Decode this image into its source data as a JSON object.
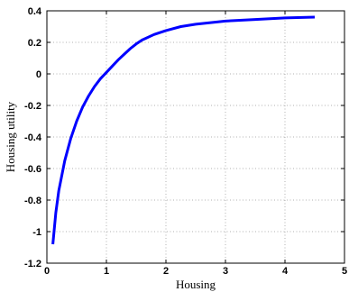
{
  "chart_data": {
    "type": "line",
    "title": "",
    "xlabel": "Housing",
    "ylabel": "Housing utility",
    "xlim": [
      0,
      5
    ],
    "ylim": [
      -1.2,
      0.4
    ],
    "xticks": [
      0,
      1,
      2,
      3,
      4,
      5
    ],
    "xtick_labels": [
      "0",
      "1",
      "2",
      "3",
      "4",
      "5"
    ],
    "yticks": [
      -1.2,
      -1,
      -0.8,
      -0.6,
      -0.4,
      -0.2,
      0,
      0.2,
      0.4
    ],
    "ytick_labels": [
      "-1.2",
      "-1",
      "-0.8",
      "-0.6",
      "-0.4",
      "-0.2",
      "0",
      "0.2",
      "0.4"
    ],
    "grid": true,
    "series": [
      {
        "color": "#0000ff",
        "x": [
          0.1,
          0.15,
          0.2,
          0.3,
          0.4,
          0.5,
          0.6,
          0.7,
          0.8,
          0.9,
          1.0,
          1.1,
          1.2,
          1.3,
          1.4,
          1.5,
          1.6,
          1.8,
          2.0,
          2.25,
          2.5,
          2.75,
          3.0,
          3.5,
          4.0,
          4.5
        ],
        "y": [
          -1.08,
          -0.88,
          -0.74,
          -0.55,
          -0.41,
          -0.3,
          -0.21,
          -0.14,
          -0.08,
          -0.03,
          0.01,
          0.05,
          0.09,
          0.125,
          0.16,
          0.19,
          0.215,
          0.25,
          0.275,
          0.3,
          0.315,
          0.325,
          0.335,
          0.345,
          0.355,
          0.36
        ]
      }
    ]
  }
}
